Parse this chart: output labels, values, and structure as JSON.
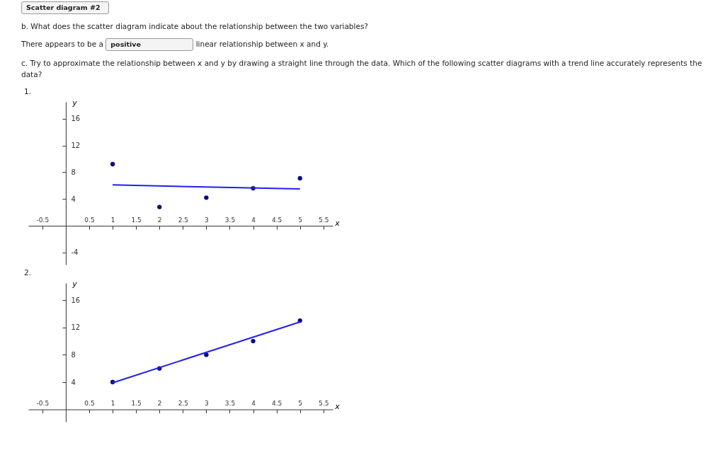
{
  "chart_data": [
    {
      "type": "scatter",
      "title": "1.",
      "xlabel": "x",
      "ylabel": "y",
      "annotations": [
        "Scatter diagram #2",
        "b. What does the scatter diagram indicate about the relationship between the two variables?",
        "There appears to be a",
        "positive",
        "linear relationship between x and y.",
        "c. Try to approximate the relationship between x and y by drawing a straight line through the data. Which of the following scatter diagrams with a trend line accurately represents the data?"
      ],
      "xlim": [
        -0.8,
        5.7
      ],
      "ylim": [
        -5.8,
        18.5
      ],
      "xticks": [
        -0.5,
        0.5,
        1,
        1.5,
        2,
        2.5,
        3,
        3.5,
        4,
        4.5,
        5,
        5.5
      ],
      "yticks": [
        -4,
        4,
        8,
        12,
        16
      ],
      "grid": false,
      "series": [
        {
          "type": "scatter",
          "marker": "circle",
          "color": "#0d0d80",
          "x": [
            1,
            2,
            3,
            4,
            5
          ],
          "values": [
            9.2,
            2.8,
            4.2,
            5.6,
            7.1
          ]
        },
        {
          "type": "line",
          "color": "#1f1ff2",
          "x": [
            1,
            5
          ],
          "values": [
            6.1,
            5.5
          ]
        }
      ]
    },
    {
      "type": "scatter",
      "title": "2.",
      "xlabel": "x",
      "ylabel": "y",
      "xlim": [
        -0.8,
        5.7
      ],
      "ylim": [
        -1.8,
        18.5
      ],
      "xticks": [
        -0.5,
        0.5,
        1,
        1.5,
        2,
        2.5,
        3,
        3.5,
        4,
        4.5,
        5,
        5.5
      ],
      "yticks": [
        4,
        8,
        12,
        16
      ],
      "grid": false,
      "series": [
        {
          "type": "scatter",
          "marker": "circle",
          "color": "#0d0d80",
          "x": [
            1,
            2,
            3,
            4,
            5
          ],
          "values": [
            4,
            6,
            8,
            10,
            13
          ]
        },
        {
          "type": "line",
          "color": "#1f1ff2",
          "x": [
            1,
            5
          ],
          "values": [
            3.9,
            12.8
          ]
        }
      ]
    }
  ]
}
